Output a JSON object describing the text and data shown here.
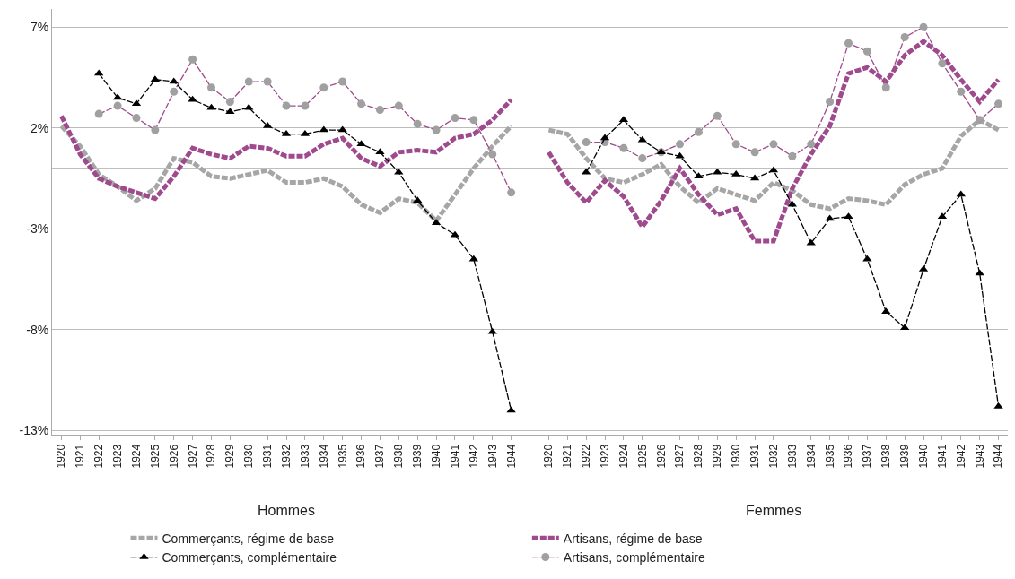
{
  "chart_data": {
    "type": "line",
    "categories": [
      "1920",
      "1921",
      "1922",
      "1923",
      "1924",
      "1925",
      "1926",
      "1927",
      "1928",
      "1929",
      "1930",
      "1931",
      "1932",
      "1933",
      "1934",
      "1935",
      "1936",
      "1937",
      "1938",
      "1939",
      "1940",
      "1941",
      "1942",
      "1943",
      "1944",
      null,
      "1920",
      "1921",
      "1922",
      "1923",
      "1924",
      "1925",
      "1926",
      "1927",
      "1928",
      "1929",
      "1930",
      "1931",
      "1932",
      "1933",
      "1934",
      "1935",
      "1936",
      "1937",
      "1938",
      "1939",
      "1940",
      "1941",
      "1942",
      "1943",
      "1944"
    ],
    "annotations": [
      "Hommes",
      "Femmes"
    ],
    "series": [
      {
        "name": "Commerçants, régime de base",
        "color": "#a6a6a6",
        "line_style": "dashed",
        "marker": "none",
        "values": [
          2.1,
          1.1,
          -0.3,
          -0.9,
          -1.6,
          -1.0,
          0.5,
          0.3,
          -0.4,
          -0.5,
          -0.3,
          -0.1,
          -0.7,
          -0.7,
          -0.5,
          -0.9,
          -1.8,
          -2.2,
          -1.5,
          -1.7,
          -2.6,
          -1.3,
          0.0,
          1.1,
          2.1,
          null,
          1.9,
          1.7,
          0.5,
          -0.5,
          -0.7,
          -0.3,
          0.2,
          -0.9,
          -1.7,
          -1.0,
          -1.3,
          -1.6,
          -0.7,
          -1.1,
          -1.8,
          -2.0,
          -1.5,
          -1.6,
          -1.8,
          -0.8,
          -0.3,
          0.0,
          1.6,
          2.4,
          1.9
        ]
      },
      {
        "name": "Artisans, régime de base",
        "color": "#9e4a8c",
        "line_style": "dashed",
        "marker": "none",
        "values": [
          2.6,
          0.7,
          -0.5,
          -0.9,
          -1.2,
          -1.5,
          -0.4,
          1.0,
          0.7,
          0.5,
          1.1,
          1.0,
          0.6,
          0.6,
          1.2,
          1.5,
          0.5,
          0.1,
          0.8,
          0.9,
          0.8,
          1.5,
          1.7,
          2.4,
          3.4,
          null,
          0.8,
          -0.7,
          -1.7,
          -0.6,
          -1.4,
          -2.9,
          -1.6,
          0.0,
          -1.3,
          -2.3,
          -2.0,
          -3.6,
          -3.6,
          -1.0,
          0.7,
          2.1,
          4.7,
          5.0,
          4.3,
          5.6,
          6.3,
          5.6,
          4.4,
          3.3,
          4.4
        ]
      },
      {
        "name": "Commerçants, complémentaire",
        "color": "#000000",
        "line_style": "dashed",
        "marker": "triangle",
        "values": [
          null,
          null,
          4.7,
          3.5,
          3.2,
          4.4,
          4.3,
          3.4,
          3.0,
          2.8,
          3.0,
          2.1,
          1.7,
          1.7,
          1.9,
          1.9,
          1.2,
          0.8,
          -0.2,
          -1.6,
          -2.7,
          -3.3,
          -4.5,
          -8.1,
          -12.0,
          null,
          null,
          null,
          -0.2,
          1.5,
          2.4,
          1.4,
          0.8,
          0.6,
          -0.4,
          -0.2,
          -0.3,
          -0.5,
          -0.1,
          -1.8,
          -3.7,
          -2.5,
          -2.4,
          -4.5,
          -7.1,
          -7.9,
          -5.0,
          -2.4,
          -1.3,
          -5.2,
          -11.8
        ]
      },
      {
        "name": "Artisans, complémentaire",
        "color": "#9e4a8c",
        "line_style": "dashed",
        "marker": "circle",
        "values": [
          null,
          null,
          2.7,
          3.1,
          2.5,
          1.9,
          3.8,
          5.4,
          4.0,
          3.3,
          4.3,
          4.3,
          3.1,
          3.1,
          4.0,
          4.3,
          3.2,
          2.9,
          3.1,
          2.2,
          1.9,
          2.5,
          2.4,
          0.7,
          -1.2,
          null,
          null,
          null,
          1.3,
          1.3,
          1.0,
          0.5,
          0.8,
          1.2,
          1.8,
          2.6,
          1.2,
          0.8,
          1.2,
          0.6,
          1.2,
          3.3,
          6.2,
          5.8,
          4.0,
          6.5,
          7.0,
          5.2,
          3.8,
          2.4,
          3.2
        ]
      }
    ],
    "ylim": [
      -13.2,
      7.9
    ],
    "yticks": [
      {
        "value": 7,
        "label": "7%"
      },
      {
        "value": 2,
        "label": "2%"
      },
      {
        "value": -3,
        "label": "-3%"
      },
      {
        "value": -8,
        "label": "-8%"
      },
      {
        "value": -13,
        "label": "-13%"
      }
    ],
    "ref_lines": [
      {
        "axis": "y",
        "value": 0,
        "color": "#a0a0a0"
      }
    ],
    "grid": "y",
    "legend": "bottom"
  }
}
